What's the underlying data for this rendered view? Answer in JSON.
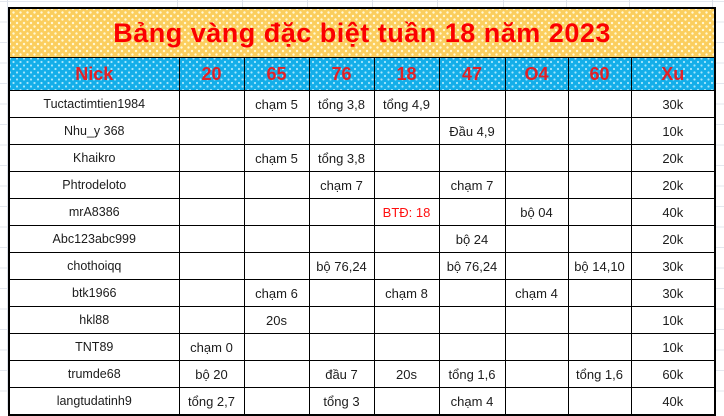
{
  "title": "Bảng vàng đặc biệt tuần 18 năm 2023",
  "table": {
    "columns": [
      "Nick",
      "20",
      "65",
      "76",
      "18",
      "47",
      "O4",
      "60",
      "Xu"
    ],
    "rows": [
      [
        "Tuctactimtien1984",
        "",
        "chạm 5",
        "tổng 3,8",
        "tổng 4,9",
        "",
        "",
        "",
        "30k"
      ],
      [
        "Nhu_y 368",
        "",
        "",
        "",
        "",
        "Đầu 4,9",
        "",
        "",
        "10k"
      ],
      [
        "Khaikro",
        "",
        "chạm 5",
        "tổng 3,8",
        "",
        "",
        "",
        "",
        "20k"
      ],
      [
        "Phtrodeloto",
        "",
        "",
        "chạm 7",
        "",
        "chạm 7",
        "",
        "",
        "20k"
      ],
      [
        "mrA8386",
        "",
        "",
        "",
        "BTĐ: 18",
        "",
        "bộ 04",
        "",
        "40k"
      ],
      [
        "Abc123abc999",
        "",
        "",
        "",
        "",
        "bộ 24",
        "",
        "",
        "20k"
      ],
      [
        "chothoiqq",
        "",
        "",
        "bộ 76,24",
        "",
        "bộ 76,24",
        "",
        "bộ 14,10",
        "30k"
      ],
      [
        "btk1966",
        "",
        "chạm 6",
        "",
        "chạm 8",
        "",
        "chạm 4",
        "",
        "30k"
      ],
      [
        "hkl88",
        "",
        "20s",
        "",
        "",
        "",
        "",
        "",
        "10k"
      ],
      [
        "TNT89",
        "chạm 0",
        "",
        "",
        "",
        "",
        "",
        "",
        "10k"
      ],
      [
        "trumde68",
        "bộ 20",
        "",
        "đầu 7",
        "20s",
        "tổng 1,6",
        "",
        "tổng 1,6",
        "60k"
      ],
      [
        "langtudatinh9",
        "tổng 2,7",
        "",
        "tổng 3",
        "",
        "chạm 4",
        "",
        "",
        "40k"
      ]
    ],
    "red_cell": {
      "row": 4,
      "col": 4
    }
  },
  "colors": {
    "title_bg": "#fbce5e",
    "header_bg": "#14aee9",
    "title_text": "#fb0000",
    "header_text": "#e02228",
    "red_cell_text": "#ff0f0f",
    "border": "#000000"
  }
}
